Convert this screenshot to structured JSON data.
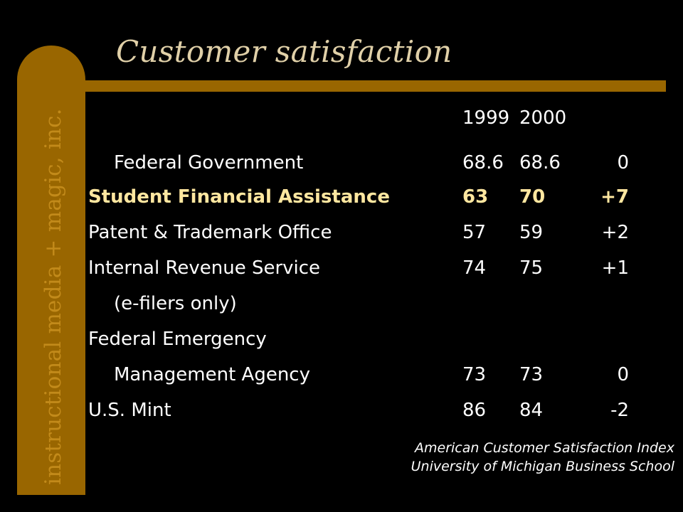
{
  "side_label": "instructional media + magic, inc.",
  "title": "Customer satisfaction",
  "table": {
    "years": [
      "1999",
      "2000"
    ],
    "rows": [
      {
        "label": "Federal Government",
        "y1999": "68.6",
        "y2000": "68.6",
        "change": "0",
        "indent": true,
        "highlight": false
      },
      {
        "label": "Student Financial Assistance",
        "y1999": "63",
        "y2000": "70",
        "change": "+7",
        "indent": false,
        "highlight": true
      },
      {
        "label": "Patent & Trademark Office",
        "y1999": "57",
        "y2000": "59",
        "change": "+2",
        "indent": false,
        "highlight": false
      },
      {
        "label": "Internal Revenue Service",
        "y1999": "74",
        "y2000": "75",
        "change": "+1",
        "indent": false,
        "highlight": false
      },
      {
        "label": "(e-filers only)",
        "y1999": "",
        "y2000": "",
        "change": "",
        "indent": true,
        "highlight": false
      },
      {
        "label": "Federal Emergency",
        "y1999": "",
        "y2000": "",
        "change": "",
        "indent": false,
        "highlight": false
      },
      {
        "label": "Management Agency",
        "y1999": "73",
        "y2000": "73",
        "change": "0",
        "indent": true,
        "highlight": false
      },
      {
        "label": "U.S. Mint",
        "y1999": "86",
        "y2000": "84",
        "change": "-2",
        "indent": false,
        "highlight": false
      }
    ]
  },
  "source": {
    "line1": "American Customer Satisfaction Index",
    "line2": "University of Michigan Business School"
  },
  "colors": {
    "background": "#000000",
    "accent_bar": "#996600",
    "side_text": "#c28a1a",
    "title": "#e0d0a8",
    "highlight_row": "#ffe7a0",
    "text": "#ffffff"
  }
}
